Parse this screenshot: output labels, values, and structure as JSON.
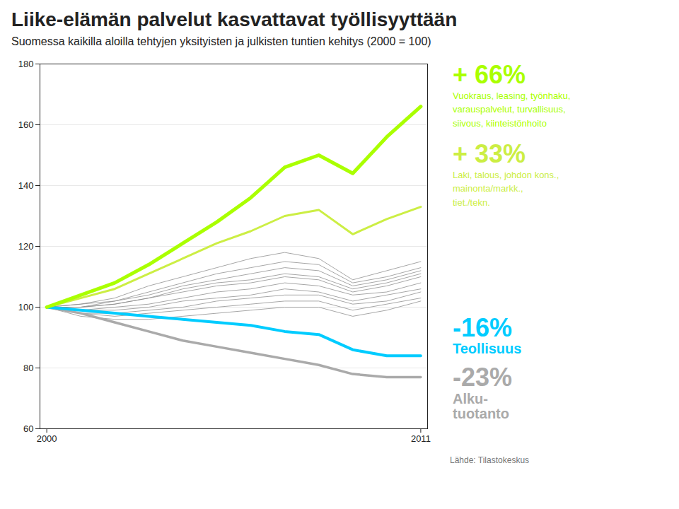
{
  "chart_data": {
    "type": "line",
    "title": "Liike-elämän palvelut kasvattavat työllisyyttään",
    "subtitle": "Suomessa kaikilla aloilla tehtyjen yksityisten ja julkisten tuntien kehitys (2000 = 100)",
    "x": [
      2000,
      2001,
      2002,
      2003,
      2004,
      2005,
      2006,
      2007,
      2008,
      2009,
      2010,
      2011
    ],
    "xlim": [
      1999.8,
      2011.2
    ],
    "xticks": [
      2000,
      2011
    ],
    "ylim": [
      60,
      180
    ],
    "yticks": [
      60,
      80,
      100,
      120,
      140,
      160,
      180
    ],
    "grid": true,
    "series": [
      {
        "color": "#888888",
        "values": [
          100,
          101,
          103,
          107,
          110,
          113,
          116,
          118,
          116,
          109,
          112,
          115
        ]
      },
      {
        "color": "#888888",
        "values": [
          100,
          101,
          102,
          105,
          108,
          111,
          113,
          115,
          114,
          108,
          110,
          113
        ]
      },
      {
        "color": "#888888",
        "values": [
          100,
          100,
          102,
          104,
          107,
          109,
          111,
          113,
          112,
          107,
          109,
          112
        ]
      },
      {
        "color": "#888888",
        "values": [
          100,
          100,
          101,
          103,
          106,
          108,
          109,
          111,
          110,
          106,
          108,
          111
        ]
      },
      {
        "color": "#888888",
        "values": [
          100,
          100,
          101,
          103,
          105,
          107,
          108,
          110,
          109,
          105,
          107,
          110
        ]
      },
      {
        "color": "#888888",
        "values": [
          100,
          99,
          100,
          101,
          103,
          105,
          106,
          108,
          107,
          104,
          105,
          108
        ]
      },
      {
        "color": "#888888",
        "values": [
          100,
          99,
          99,
          100,
          102,
          103,
          104,
          106,
          105,
          102,
          104,
          106
        ]
      },
      {
        "color": "#888888",
        "values": [
          100,
          98,
          98,
          99,
          100,
          102,
          103,
          104,
          104,
          101,
          102,
          105
        ]
      },
      {
        "color": "#888888",
        "values": [
          100,
          98,
          97,
          98,
          99,
          100,
          101,
          102,
          102,
          99,
          101,
          103
        ]
      },
      {
        "color": "#888888",
        "values": [
          100,
          97,
          96,
          96,
          97,
          98,
          99,
          100,
          100,
          97,
          99,
          102
        ]
      },
      {
        "color": "#aaaaaa",
        "values": [
          100,
          98,
          95,
          92,
          89,
          87,
          85,
          83,
          81,
          78,
          77,
          77
        ]
      },
      {
        "color": "#00ccff",
        "values": [
          100,
          99,
          98,
          97,
          96,
          95,
          94,
          92,
          91,
          86,
          84,
          84
        ]
      },
      {
        "color": "#ccee44",
        "values": [
          100,
          103,
          106,
          111,
          116,
          121,
          125,
          130,
          132,
          124,
          129,
          133
        ]
      },
      {
        "color": "#aaff00",
        "values": [
          100,
          104,
          108,
          114,
          121,
          128,
          136,
          146,
          150,
          144,
          156,
          166
        ]
      }
    ],
    "annotations": [
      {
        "text": "+ 66%",
        "color": "#aaff00"
      },
      {
        "text": "Vuokraus, leasing, työnhaku,\nvarauspalvelut, turvallisuus,\nsiivous, kiinteistönhoito",
        "color": "#aaff00"
      },
      {
        "text": "+ 33%",
        "color": "#ccee44"
      },
      {
        "text": "Laki, talous, johdon kons.,\nmainonta/markk.,\ntiet./tekn.",
        "color": "#ccee44"
      },
      {
        "text": "-16%",
        "color": "#00ccff"
      },
      {
        "text": "Teollisuus",
        "color": "#00ccff"
      },
      {
        "text": "-23%",
        "color": "#aaaaaa"
      },
      {
        "text": "Alku-\ntuotanto",
        "color": "#aaaaaa"
      }
    ],
    "source": "Lähde: Tilastokeskus"
  }
}
